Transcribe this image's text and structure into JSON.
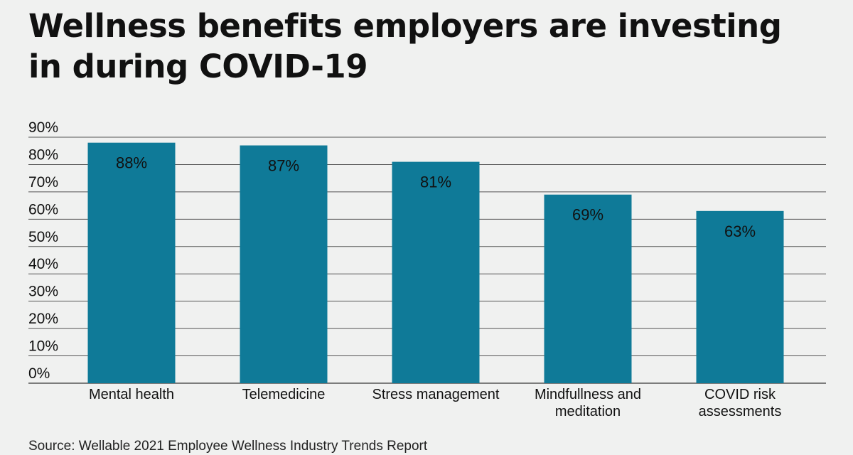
{
  "title": "Wellness benefits employers are investing in during COVID-19",
  "source": "Source: Wellable 2021 Employee Wellness Industry Trends Report",
  "colors": {
    "bar": "#0f7a98",
    "grid": "#555555",
    "background": "#f0f1f0",
    "text": "#111111"
  },
  "chart_data": {
    "type": "bar",
    "categories": [
      [
        "Mental health"
      ],
      [
        "Telemedicine"
      ],
      [
        "Stress management"
      ],
      [
        "Mindfullness and",
        "meditation"
      ],
      [
        "COVID risk",
        "assessments"
      ]
    ],
    "values": [
      88,
      87,
      81,
      69,
      63
    ],
    "value_labels": [
      "88%",
      "87%",
      "81%",
      "69%",
      "63%"
    ],
    "ylim": [
      0,
      90
    ],
    "yticks": [
      0,
      10,
      20,
      30,
      40,
      50,
      60,
      70,
      80,
      90
    ],
    "ytick_labels": [
      "0%",
      "10%",
      "20%",
      "30%",
      "40%",
      "50%",
      "60%",
      "70%",
      "80%",
      "90%"
    ],
    "grid": true,
    "legend": "none",
    "xlabel": "",
    "ylabel": ""
  }
}
